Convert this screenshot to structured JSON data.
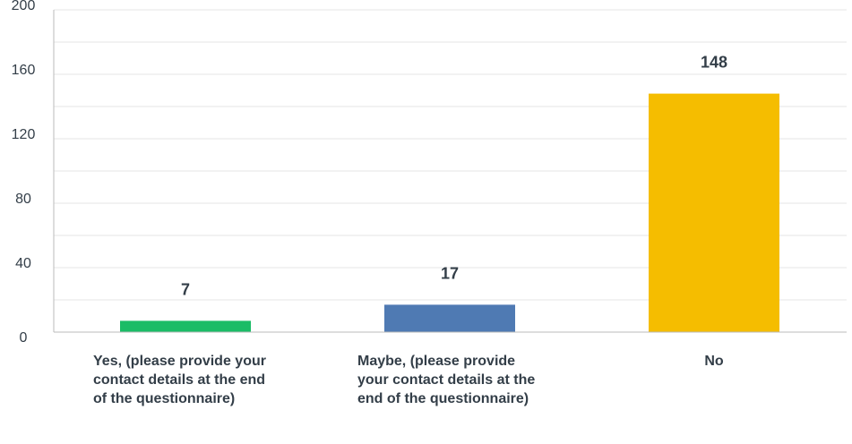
{
  "chart_data": {
    "type": "bar",
    "categories": [
      "Yes, (please provide your contact details at the end of the questionnaire)",
      "Maybe, (please provide your contact details at the end of the questionnaire)",
      "No"
    ],
    "values": [
      7,
      17,
      148
    ],
    "ylim": [
      0,
      200
    ],
    "yticks": [
      0,
      40,
      80,
      120,
      160,
      200
    ],
    "grid": true,
    "colors": [
      "#1abc66",
      "#4f7ab3",
      "#f5bd00"
    ],
    "title": "",
    "xlabel": "",
    "ylabel": ""
  },
  "colors": {
    "grid": "#e6e6e6",
    "axis": "#bbbbbb",
    "text": "#333e48"
  }
}
